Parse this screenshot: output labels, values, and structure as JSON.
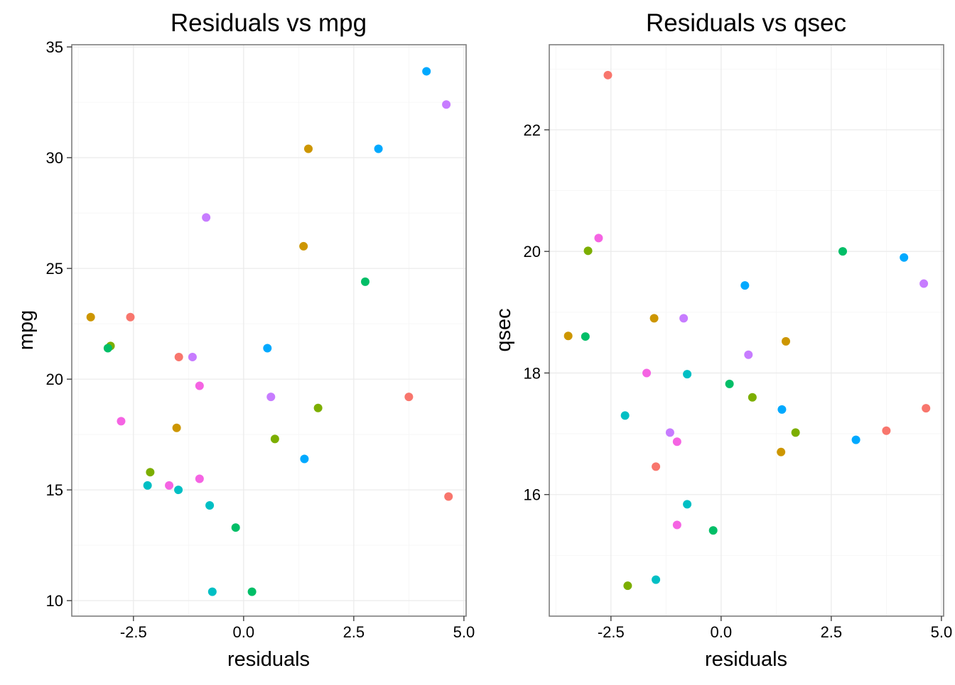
{
  "chart_data": [
    {
      "type": "scatter",
      "title": "Residuals vs mpg",
      "xlabel": "residuals",
      "ylabel": "mpg",
      "xlim": [
        -3.9,
        5.05
      ],
      "ylim": [
        9.3,
        35.1
      ],
      "x_ticks": [
        -2.5,
        0.0,
        2.5,
        5.0
      ],
      "x_tick_labels": [
        "-2.5",
        "0.0",
        "2.5",
        "5.0"
      ],
      "y_ticks": [
        10,
        15,
        20,
        25,
        30,
        35
      ],
      "y_tick_labels": [
        "10",
        "15",
        "20",
        "25",
        "30",
        "35"
      ],
      "grid": true,
      "legend": "none",
      "points": [
        {
          "x": 4.15,
          "y": 33.9,
          "color": "#00A9FF"
        },
        {
          "x": 4.6,
          "y": 32.4,
          "color": "#C77CFF"
        },
        {
          "x": 1.47,
          "y": 30.4,
          "color": "#CD9600"
        },
        {
          "x": 3.06,
          "y": 30.4,
          "color": "#00A9FF"
        },
        {
          "x": -0.85,
          "y": 27.3,
          "color": "#C77CFF"
        },
        {
          "x": 1.36,
          "y": 26.0,
          "color": "#CD9600"
        },
        {
          "x": 2.76,
          "y": 24.4,
          "color": "#00BE67"
        },
        {
          "x": -3.47,
          "y": 22.8,
          "color": "#CD9600"
        },
        {
          "x": -2.57,
          "y": 22.8,
          "color": "#F8766D"
        },
        {
          "x": -3.02,
          "y": 21.5,
          "color": "#7CAE00"
        },
        {
          "x": -3.08,
          "y": 21.4,
          "color": "#00BE67"
        },
        {
          "x": 0.54,
          "y": 21.4,
          "color": "#00A9FF"
        },
        {
          "x": -1.47,
          "y": 21.0,
          "color": "#F8766D"
        },
        {
          "x": -1.16,
          "y": 21.0,
          "color": "#C77CFF"
        },
        {
          "x": -1.0,
          "y": 19.7,
          "color": "#F564E3"
        },
        {
          "x": 0.62,
          "y": 19.2,
          "color": "#C77CFF"
        },
        {
          "x": 3.75,
          "y": 19.2,
          "color": "#F8766D"
        },
        {
          "x": 1.69,
          "y": 18.7,
          "color": "#7CAE00"
        },
        {
          "x": -2.78,
          "y": 18.1,
          "color": "#F564E3"
        },
        {
          "x": -1.52,
          "y": 17.8,
          "color": "#CD9600"
        },
        {
          "x": 0.71,
          "y": 17.3,
          "color": "#7CAE00"
        },
        {
          "x": 1.38,
          "y": 16.4,
          "color": "#00A9FF"
        },
        {
          "x": -2.12,
          "y": 15.8,
          "color": "#7CAE00"
        },
        {
          "x": -2.18,
          "y": 15.2,
          "color": "#00BFC4"
        },
        {
          "x": -1.69,
          "y": 15.2,
          "color": "#F564E3"
        },
        {
          "x": -1.48,
          "y": 15.0,
          "color": "#00BFC4"
        },
        {
          "x": -1.0,
          "y": 15.5,
          "color": "#F564E3"
        },
        {
          "x": -0.77,
          "y": 14.3,
          "color": "#00BFC4"
        },
        {
          "x": -0.18,
          "y": 13.3,
          "color": "#00BE67"
        },
        {
          "x": 4.65,
          "y": 14.7,
          "color": "#F8766D"
        },
        {
          "x": -0.71,
          "y": 10.4,
          "color": "#00BFC4"
        },
        {
          "x": 0.19,
          "y": 10.4,
          "color": "#00BE67"
        }
      ]
    },
    {
      "type": "scatter",
      "title": "Residuals vs qsec",
      "xlabel": "residuals",
      "ylabel": "qsec",
      "xlim": [
        -3.9,
        5.05
      ],
      "ylim": [
        14.0,
        23.4
      ],
      "x_ticks": [
        -2.5,
        0.0,
        2.5,
        5.0
      ],
      "x_tick_labels": [
        "-2.5",
        "0.0",
        "2.5",
        "5.0"
      ],
      "y_ticks": [
        16,
        18,
        20,
        22
      ],
      "y_tick_labels": [
        "16",
        "18",
        "20",
        "22"
      ],
      "grid": true,
      "legend": "none",
      "points": [
        {
          "x": -2.57,
          "y": 22.9,
          "color": "#F8766D"
        },
        {
          "x": -2.78,
          "y": 20.22,
          "color": "#F564E3"
        },
        {
          "x": -3.02,
          "y": 20.01,
          "color": "#7CAE00"
        },
        {
          "x": 2.76,
          "y": 20.0,
          "color": "#00BE67"
        },
        {
          "x": 4.15,
          "y": 19.9,
          "color": "#00A9FF"
        },
        {
          "x": 0.54,
          "y": 19.44,
          "color": "#00A9FF"
        },
        {
          "x": 4.6,
          "y": 19.47,
          "color": "#C77CFF"
        },
        {
          "x": -1.52,
          "y": 18.9,
          "color": "#CD9600"
        },
        {
          "x": -0.85,
          "y": 18.9,
          "color": "#C77CFF"
        },
        {
          "x": -3.47,
          "y": 18.61,
          "color": "#CD9600"
        },
        {
          "x": -3.08,
          "y": 18.6,
          "color": "#00BE67"
        },
        {
          "x": 1.47,
          "y": 18.52,
          "color": "#CD9600"
        },
        {
          "x": 0.62,
          "y": 18.3,
          "color": "#C77CFF"
        },
        {
          "x": -1.69,
          "y": 18.0,
          "color": "#F564E3"
        },
        {
          "x": -0.77,
          "y": 17.98,
          "color": "#00BFC4"
        },
        {
          "x": 0.19,
          "y": 17.82,
          "color": "#00BE67"
        },
        {
          "x": 0.71,
          "y": 17.6,
          "color": "#7CAE00"
        },
        {
          "x": 4.65,
          "y": 17.42,
          "color": "#F8766D"
        },
        {
          "x": 1.38,
          "y": 17.4,
          "color": "#00A9FF"
        },
        {
          "x": -2.18,
          "y": 17.3,
          "color": "#00BFC4"
        },
        {
          "x": 3.75,
          "y": 17.05,
          "color": "#F8766D"
        },
        {
          "x": -1.16,
          "y": 17.02,
          "color": "#C77CFF"
        },
        {
          "x": 1.69,
          "y": 17.02,
          "color": "#7CAE00"
        },
        {
          "x": 3.06,
          "y": 16.9,
          "color": "#00A9FF"
        },
        {
          "x": -1.0,
          "y": 16.87,
          "color": "#F564E3"
        },
        {
          "x": 1.36,
          "y": 16.7,
          "color": "#CD9600"
        },
        {
          "x": -1.48,
          "y": 16.46,
          "color": "#F8766D"
        },
        {
          "x": -0.77,
          "y": 15.84,
          "color": "#00BFC4"
        },
        {
          "x": -1.0,
          "y": 15.5,
          "color": "#F564E3"
        },
        {
          "x": -0.18,
          "y": 15.41,
          "color": "#00BE67"
        },
        {
          "x": -1.48,
          "y": 14.6,
          "color": "#00BFC4"
        },
        {
          "x": -2.12,
          "y": 14.5,
          "color": "#7CAE00"
        }
      ]
    }
  ]
}
